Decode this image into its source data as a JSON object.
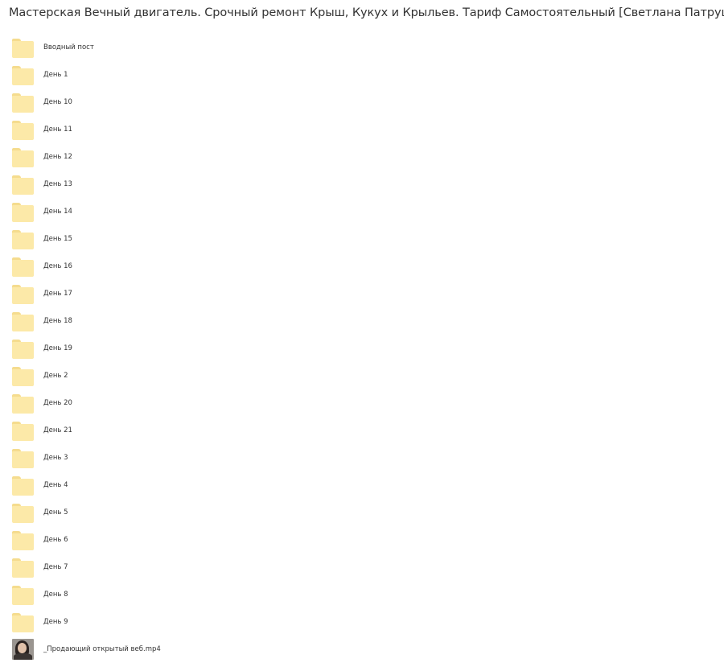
{
  "title": "Мастерская Вечный двигатель. Срочный ремонт Крыш, Кукух и Крыльев. Тариф Самостоятельный [Светлана Патрушева]",
  "items": [
    {
      "name": "Вводный пост",
      "type": "folder"
    },
    {
      "name": "День 1",
      "type": "folder"
    },
    {
      "name": "День 10",
      "type": "folder"
    },
    {
      "name": "День 11",
      "type": "folder"
    },
    {
      "name": "День 12",
      "type": "folder"
    },
    {
      "name": "День 13",
      "type": "folder"
    },
    {
      "name": "День 14",
      "type": "folder"
    },
    {
      "name": "День 15",
      "type": "folder"
    },
    {
      "name": "День 16",
      "type": "folder"
    },
    {
      "name": "День 17",
      "type": "folder"
    },
    {
      "name": "День 18",
      "type": "folder"
    },
    {
      "name": "День 19",
      "type": "folder"
    },
    {
      "name": "День 2",
      "type": "folder"
    },
    {
      "name": "День 20",
      "type": "folder"
    },
    {
      "name": "День 21",
      "type": "folder"
    },
    {
      "name": "День 3",
      "type": "folder"
    },
    {
      "name": "День 4",
      "type": "folder"
    },
    {
      "name": "День 5",
      "type": "folder"
    },
    {
      "name": "День 6",
      "type": "folder"
    },
    {
      "name": "День 7",
      "type": "folder"
    },
    {
      "name": "День 8",
      "type": "folder"
    },
    {
      "name": "День 9",
      "type": "folder"
    },
    {
      "name": "_Продающий открытый веб.mp4",
      "type": "video"
    }
  ],
  "colors": {
    "folder": "#fce9a8",
    "folder_tab": "#f5dc8e"
  }
}
